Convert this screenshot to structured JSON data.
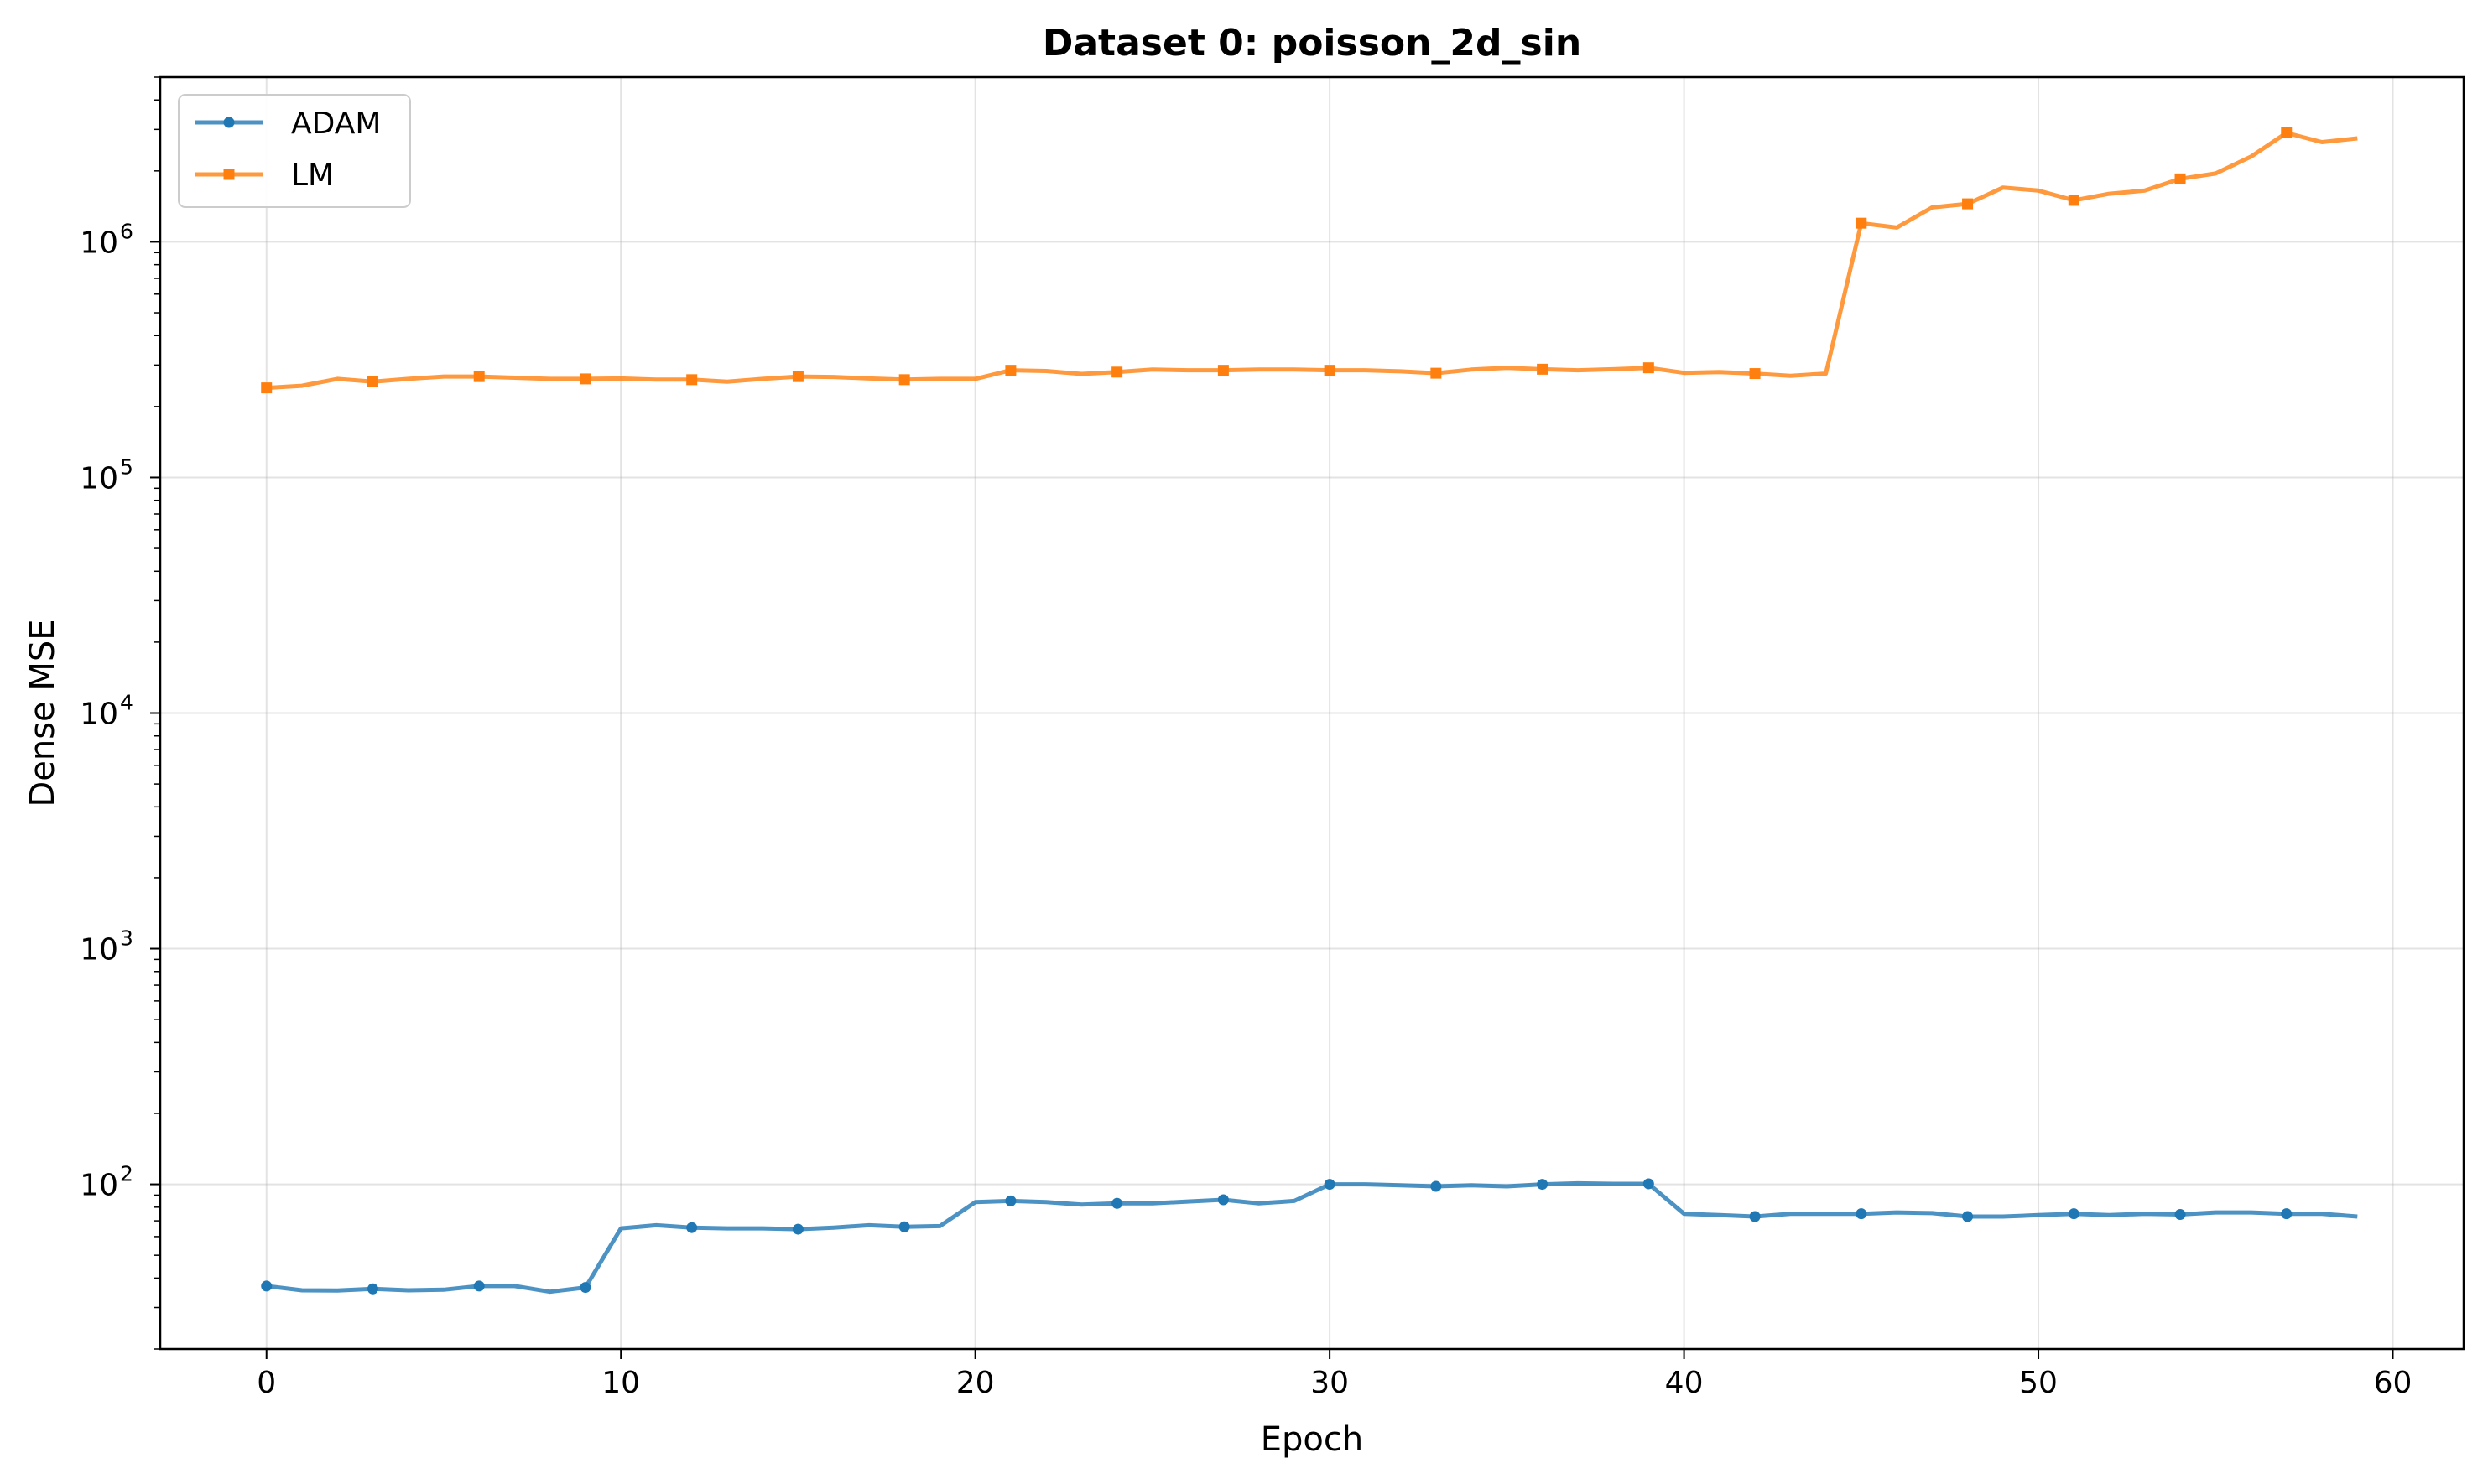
{
  "chart_data": {
    "type": "line",
    "title": "Dataset 0: poisson_2d_sin",
    "xlabel": "Epoch",
    "ylabel": "Dense MSE",
    "xlim": [
      -3,
      62
    ],
    "ylim": [
      20,
      5000000
    ],
    "yscale": "log",
    "x_ticks": [
      0,
      10,
      20,
      30,
      40,
      50,
      60
    ],
    "y_ticks": [
      {
        "value": 100,
        "base": "10",
        "exp": "2"
      },
      {
        "value": 1000,
        "base": "10",
        "exp": "3"
      },
      {
        "value": 10000,
        "base": "10",
        "exp": "4"
      },
      {
        "value": 100000,
        "base": "10",
        "exp": "5"
      },
      {
        "value": 1000000,
        "base": "10",
        "exp": "6"
      }
    ],
    "grid": true,
    "legend_position": "top-left",
    "x": [
      0,
      1,
      2,
      3,
      4,
      5,
      6,
      7,
      8,
      9,
      10,
      11,
      12,
      13,
      14,
      15,
      16,
      17,
      18,
      19,
      20,
      21,
      22,
      23,
      24,
      25,
      26,
      27,
      28,
      29,
      30,
      31,
      32,
      33,
      34,
      35,
      36,
      37,
      38,
      39,
      40,
      41,
      42,
      43,
      44,
      45,
      46,
      47,
      48,
      49,
      50,
      51,
      52,
      53,
      54,
      55,
      56,
      57,
      58,
      59
    ],
    "series": [
      {
        "name": "ADAM",
        "color": "#1f77b4",
        "marker": "circle",
        "marker_every": 3,
        "values": [
          37,
          35.5,
          35.4,
          36,
          35.5,
          35.7,
          37,
          37,
          35,
          36.5,
          65,
          67,
          65.5,
          65,
          65,
          64.5,
          65.5,
          67,
          66,
          66.5,
          84,
          85,
          84,
          82,
          83,
          83,
          84.5,
          86,
          83,
          85,
          100,
          100,
          99,
          98,
          99,
          98,
          100,
          101,
          100.5,
          100.5,
          75,
          74,
          73,
          75,
          75,
          75,
          76,
          75.5,
          73,
          73,
          74,
          75,
          74,
          75,
          74.5,
          76,
          76,
          75,
          75,
          73
        ]
      },
      {
        "name": "LM",
        "color": "#ff7f0e",
        "marker": "square",
        "marker_every": 3,
        "values": [
          240000,
          245000,
          262000,
          255000,
          262000,
          268000,
          268000,
          265000,
          262000,
          262000,
          263000,
          260000,
          260000,
          255000,
          262000,
          268000,
          267000,
          263000,
          260000,
          262000,
          262000,
          285000,
          283000,
          275000,
          280000,
          287000,
          285000,
          285000,
          287000,
          287000,
          285000,
          285000,
          282000,
          277000,
          287000,
          292000,
          288000,
          285000,
          288000,
          292000,
          278000,
          280000,
          276000,
          270000,
          276000,
          1200000,
          1150000,
          1400000,
          1450000,
          1700000,
          1650000,
          1500000,
          1600000,
          1650000,
          1850000,
          1950000,
          2300000,
          2900000,
          2650000,
          2750000
        ]
      }
    ]
  }
}
